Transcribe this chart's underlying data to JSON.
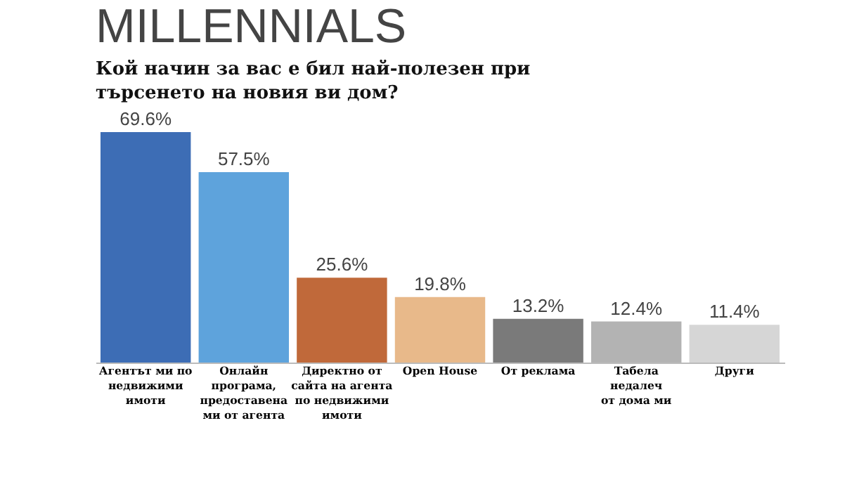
{
  "chart_data": {
    "type": "bar",
    "title": "MILLENNIALS",
    "subtitle": "Кой начин за вас е бил най-полезен при\nтърсенето на новия ви дом?",
    "categories": [
      "Агентът ми по\nнедвижими\nимоти",
      "Онлайн\nпрограма,\nпредоставена\nми от агента",
      "Директно от\nсайта на агента\nпо недвижими\nимоти",
      "Open House",
      "От реклама",
      "Табела\nнедалеч\nот дома ми",
      "Други"
    ],
    "values": [
      69.6,
      57.5,
      25.6,
      19.8,
      13.2,
      12.4,
      11.4
    ],
    "colors": [
      "#3d6db5",
      "#5ea3dc",
      "#c0693a",
      "#e8b98a",
      "#7a7a7a",
      "#b3b3b3",
      "#d6d6d6"
    ],
    "value_labels": [
      "69.6%",
      "57.5%",
      "25.6%",
      "19.8%",
      "13.2%",
      "12.4%",
      "11.4%"
    ],
    "grid": false
  }
}
